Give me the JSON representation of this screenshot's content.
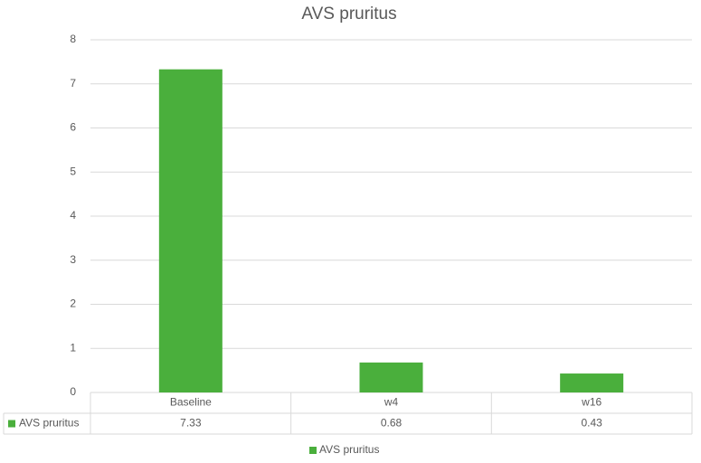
{
  "chart_data": {
    "type": "bar",
    "title": "AVS pruritus",
    "categories": [
      "Baseline",
      "w4",
      "w16"
    ],
    "series": [
      {
        "name": "AVS pruritus",
        "color": "#4aaf3c",
        "values": [
          7.33,
          0.68,
          0.43
        ]
      }
    ],
    "ylim": [
      0,
      8
    ],
    "yticks": [
      0,
      1,
      2,
      3,
      4,
      5,
      6,
      7,
      8
    ],
    "grid": true,
    "legend": "bottom",
    "data_table": true
  }
}
